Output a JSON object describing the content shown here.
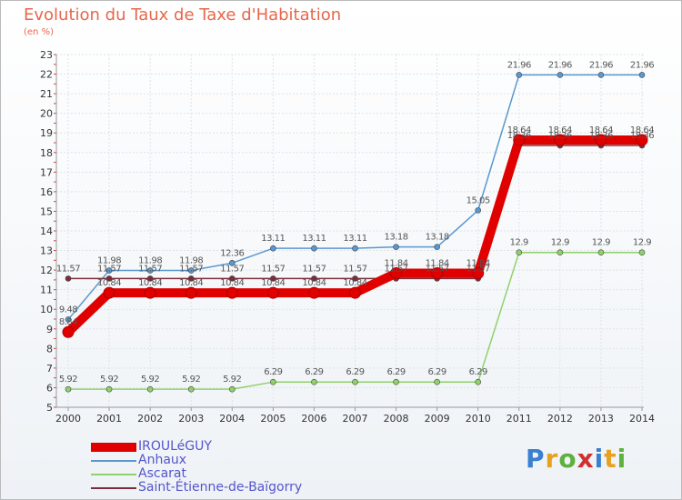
{
  "chart_data": {
    "type": "line",
    "title": "Evolution du Taux de Taxe d'Habitation",
    "subtitle": "(en %)",
    "x": [
      "2000",
      "2001",
      "2002",
      "2003",
      "2004",
      "2005",
      "2006",
      "2007",
      "2008",
      "2009",
      "2010",
      "2011",
      "2012",
      "2013",
      "2014"
    ],
    "ylim": [
      5,
      23
    ],
    "yticks": [
      5,
      6,
      7,
      8,
      9,
      10,
      11,
      12,
      13,
      14,
      15,
      16,
      17,
      18,
      19,
      20,
      21,
      22,
      23
    ],
    "grid": true,
    "legend_position": "bottom-left",
    "series": [
      {
        "name": "IROULéGUY",
        "color": "#e00000",
        "values": [
          8.84,
          10.84,
          10.84,
          10.84,
          10.84,
          10.84,
          10.84,
          10.84,
          11.84,
          11.84,
          11.84,
          18.64,
          18.64,
          18.64,
          18.64
        ],
        "labels": [
          "8.84",
          "10.84",
          "10.84",
          "10.84",
          "10.84",
          "10.84",
          "10.84",
          "10.84",
          "11.84",
          "11.84",
          "11.84",
          "18.64",
          "18.64",
          "18.64",
          "18.64"
        ]
      },
      {
        "name": "Anhaux",
        "color": "#5a98cf",
        "values": [
          9.48,
          11.98,
          11.98,
          11.98,
          12.36,
          13.11,
          13.11,
          13.11,
          13.18,
          13.18,
          15.05,
          21.96,
          21.96,
          21.96,
          21.96
        ],
        "labels": [
          "9.48",
          "11.98",
          "11.98",
          "11.98",
          "12.36",
          "13.11",
          "13.11",
          "13.11",
          "13.18",
          "13.18",
          "15.05",
          "21.96",
          "21.96",
          "21.96",
          "21.96"
        ]
      },
      {
        "name": "Ascarat",
        "color": "#8fd16a",
        "values": [
          5.92,
          5.92,
          5.92,
          5.92,
          5.92,
          6.29,
          6.29,
          6.29,
          6.29,
          6.29,
          6.29,
          12.9,
          12.9,
          12.9,
          12.9
        ],
        "labels": [
          "5.92",
          "5.92",
          "5.92",
          "5.92",
          "5.92",
          "6.29",
          "6.29",
          "6.29",
          "6.29",
          "6.29",
          "6.29",
          "12.9",
          "12.9",
          "12.9",
          "12.9"
        ]
      },
      {
        "name": "Saint-Étienne-de-Baïgorry",
        "color": "#7a2e3a",
        "values": [
          11.57,
          11.57,
          11.57,
          11.57,
          11.57,
          11.57,
          11.57,
          11.57,
          11.57,
          11.57,
          11.57,
          18.36,
          18.36,
          18.36,
          18.36
        ],
        "labels": [
          "11.57",
          "11.57",
          "11.57",
          "11.57",
          "11.57",
          "11.57",
          "11.57",
          "11.57",
          "11.57",
          "11.57",
          "11.57",
          "18.36",
          "18.36",
          "18.36",
          "18.36"
        ]
      }
    ]
  },
  "branding": {
    "logo_text": "Proxiti"
  }
}
